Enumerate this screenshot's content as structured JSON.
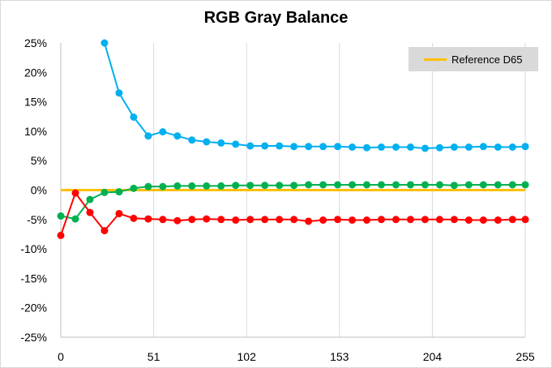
{
  "chart_data": {
    "type": "line",
    "title": "RGB Gray Balance",
    "xlabel": "",
    "ylabel": "",
    "xlim": [
      0,
      255
    ],
    "ylim": [
      -25,
      25
    ],
    "x_ticks": [
      0,
      51,
      102,
      153,
      204,
      255
    ],
    "x_tick_labels": [
      "0",
      "51",
      "102",
      "153",
      "204",
      "255"
    ],
    "y_ticks": [
      25,
      20,
      15,
      10,
      5,
      0,
      -5,
      -10,
      -15,
      -20,
      -25
    ],
    "y_tick_labels": [
      "25%",
      "20%",
      "15%",
      "10%",
      "5%",
      "0%",
      "-5%",
      "-10%",
      "-15%",
      "-20%",
      "-25%"
    ],
    "grid": "vertical",
    "legend_position": "top-right",
    "legend": [
      {
        "name": "Reference D65",
        "color": "#ffc000"
      }
    ],
    "reference_line": {
      "name": "Reference D65",
      "y": 0,
      "color": "#ffc000"
    },
    "x": [
      0,
      8,
      16,
      24,
      32,
      40,
      48,
      56,
      64,
      72,
      80,
      88,
      96,
      104,
      112,
      120,
      128,
      136,
      144,
      152,
      160,
      168,
      176,
      184,
      192,
      200,
      208,
      216,
      224,
      232,
      240,
      248,
      255
    ],
    "series": [
      {
        "color": "#00b0f0",
        "values": [
          null,
          null,
          null,
          25.0,
          16.5,
          12.4,
          9.2,
          9.9,
          9.2,
          8.5,
          8.2,
          8.0,
          7.8,
          7.5,
          7.5,
          7.5,
          7.4,
          7.4,
          7.4,
          7.4,
          7.3,
          7.2,
          7.3,
          7.3,
          7.3,
          7.1,
          7.2,
          7.3,
          7.3,
          7.4,
          7.3,
          7.3,
          7.4
        ]
      },
      {
        "color": "#00b050",
        "values": [
          -4.4,
          -4.9,
          -1.6,
          -0.4,
          -0.3,
          0.3,
          0.6,
          0.6,
          0.7,
          0.7,
          0.7,
          0.7,
          0.8,
          0.8,
          0.8,
          0.8,
          0.8,
          0.9,
          0.9,
          0.9,
          0.9,
          0.9,
          0.9,
          0.9,
          0.9,
          0.9,
          0.9,
          0.8,
          0.9,
          0.9,
          0.9,
          0.9,
          0.9
        ]
      },
      {
        "color": "#ff0000",
        "values": [
          -7.7,
          -0.5,
          -3.8,
          -6.9,
          -4.0,
          -4.8,
          -4.9,
          -5.0,
          -5.2,
          -5.0,
          -4.9,
          -5.0,
          -5.1,
          -5.0,
          -5.0,
          -5.0,
          -5.0,
          -5.3,
          -5.1,
          -5.0,
          -5.1,
          -5.1,
          -5.0,
          -5.0,
          -5.0,
          -5.0,
          -5.0,
          -5.0,
          -5.1,
          -5.1,
          -5.1,
          -5.0,
          -5.0
        ]
      }
    ]
  }
}
